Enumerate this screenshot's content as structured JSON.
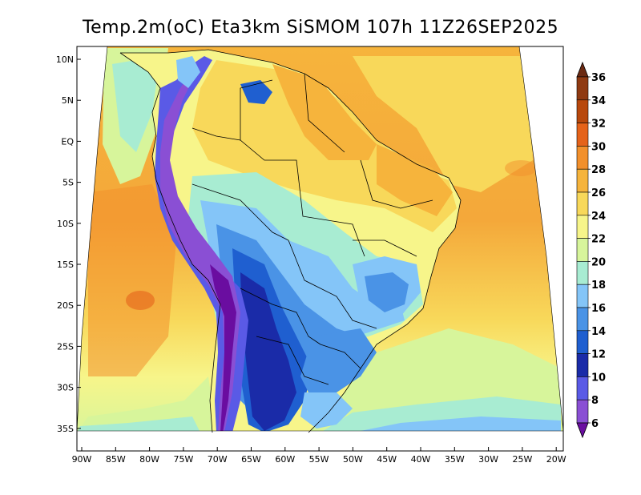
{
  "title": "Temp.2m(oC) Eta3km SiSMOM 107h 11Z26SEP2025",
  "axes": {
    "lat_labels": [
      "10N",
      "5N",
      "EQ",
      "5S",
      "10S",
      "15S",
      "20S",
      "25S",
      "30S",
      "35S"
    ],
    "lon_labels": [
      "90W",
      "85W",
      "80W",
      "75W",
      "70W",
      "65W",
      "60W",
      "55W",
      "50W",
      "45W",
      "40W",
      "35W",
      "30W",
      "25W",
      "20W"
    ]
  },
  "colorbar": {
    "labels": [
      "36",
      "34",
      "32",
      "30",
      "28",
      "26",
      "24",
      "22",
      "20",
      "18",
      "16",
      "14",
      "12",
      "10",
      "8",
      "6"
    ],
    "colors": [
      "#6b2a12",
      "#8f3a12",
      "#b8480c",
      "#e5631a",
      "#f2902c",
      "#f6b43c",
      "#f8d85a",
      "#f7f58a",
      "#d7f59b",
      "#a8ecd2",
      "#84c5f8",
      "#4a93e6",
      "#1f5fd0",
      "#1a2ba8",
      "#5a5ae6",
      "#8a4fd4",
      "#6a0da0"
    ]
  },
  "palette": {
    "ocean_north": "#f6b43c",
    "ocean_south": "#f7f58a",
    "frame": "#000000",
    "border": "#000000"
  }
}
